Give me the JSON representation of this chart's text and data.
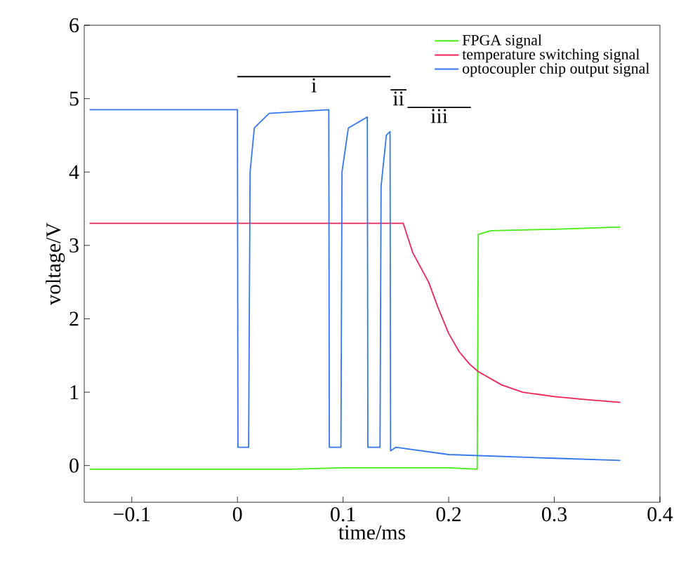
{
  "chart_data": {
    "type": "line",
    "xlabel": "time/ms",
    "ylabel": "voltage/V",
    "xlim": [
      -0.145,
      0.4
    ],
    "ylim": [
      -0.5,
      6
    ],
    "xticks": [
      {
        "value": -0.1,
        "label": "−0.1"
      },
      0,
      0.1,
      0.2,
      0.3,
      0.4
    ],
    "yticks": [
      0,
      1,
      2,
      3,
      4,
      5,
      6
    ],
    "grid": false,
    "legend": "top right",
    "marker": "none",
    "line_style": "solid",
    "series": [
      {
        "name": "FPGA signal",
        "color": "#44ee11",
        "x": [
          -0.14,
          -0.1,
          -0.05,
          0,
          0.05,
          0.1,
          0.15,
          0.2,
          0.227,
          0.228,
          0.24,
          0.3,
          0.3625
        ],
        "values": [
          -0.05,
          -0.05,
          -0.05,
          -0.05,
          -0.05,
          -0.03,
          -0.03,
          -0.03,
          -0.05,
          3.15,
          3.2,
          3.22,
          3.25
        ]
      },
      {
        "name": "temperature switching signal",
        "color": "#ee2255",
        "x": [
          -0.14,
          0,
          0.1,
          0.157,
          0.166,
          0.181,
          0.19,
          0.2,
          0.21,
          0.22,
          0.228,
          0.25,
          0.27,
          0.3,
          0.33,
          0.3625
        ],
        "values": [
          3.3,
          3.3,
          3.3,
          3.3,
          2.9,
          2.5,
          2.15,
          1.8,
          1.55,
          1.38,
          1.28,
          1.1,
          1.0,
          0.94,
          0.9,
          0.86
        ]
      },
      {
        "name": "optocoupler chip output signal",
        "color": "#3377ee",
        "x": [
          -0.14,
          0,
          0.0005,
          0.0106,
          0.012,
          0.016,
          0.03,
          0.0865,
          0.087,
          0.098,
          0.099,
          0.105,
          0.123,
          0.1235,
          0.135,
          0.136,
          0.141,
          0.1445,
          0.145,
          0.15,
          0.2,
          0.3,
          0.3625
        ],
        "values": [
          4.85,
          4.85,
          0.25,
          0.25,
          4.0,
          4.6,
          4.8,
          4.85,
          0.25,
          0.25,
          4.0,
          4.6,
          4.75,
          0.25,
          0.25,
          3.8,
          4.5,
          4.55,
          0.2,
          0.25,
          0.15,
          0.1,
          0.07
        ]
      },
      {
        "type": "line",
        "color": "#000000",
        "x": [
          0,
          0.145
        ],
        "values": [
          5.3,
          5.3
        ]
      },
      {
        "type": "line",
        "color": "#000000",
        "x": [
          0.145,
          0.16
        ],
        "values": [
          5.12,
          5.12
        ]
      },
      {
        "type": "line",
        "color": "#000000",
        "x": [
          0.161,
          0.221
        ],
        "values": [
          4.88,
          4.88
        ]
      }
    ],
    "annotations": [
      "i",
      "ii",
      "iii"
    ]
  }
}
